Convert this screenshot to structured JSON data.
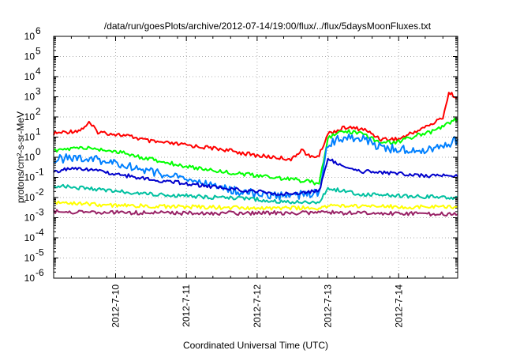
{
  "chart_data": {
    "type": "line",
    "title": "/data/run/goesPlots/archive/2012-07-14/19:00/flux/../flux/5daysMoonFluxes.txt",
    "xlabel": "Coordinated Universal Time (UTC)",
    "ylabel": "protons/cm²-s-sr-MeV",
    "y_scale": "log",
    "ylim": [
      1e-06,
      1000000.0
    ],
    "y_ticks": [
      {
        "exp": "-6"
      },
      {
        "exp": "-5"
      },
      {
        "exp": "-4"
      },
      {
        "exp": "-3"
      },
      {
        "exp": "-2"
      },
      {
        "exp": "-1"
      },
      {
        "exp": "0"
      },
      {
        "exp": "1"
      },
      {
        "exp": "2"
      },
      {
        "exp": "3"
      },
      {
        "exp": "4"
      },
      {
        "exp": "5"
      },
      {
        "exp": "6"
      }
    ],
    "xlim": [
      "2012-07-09T03:00",
      "2012-07-14T20:00"
    ],
    "x_ticks": [
      "2012-7-10",
      "2012-7-11",
      "2012-7-12",
      "2012-7-13",
      "2012-7-14"
    ],
    "grid": true,
    "series": [
      {
        "color": "#ff0000",
        "points": [
          [
            "2012-07-09T03:00",
            15
          ],
          [
            "2012-07-09T12:00",
            22
          ],
          [
            "2012-07-09T15:00",
            50
          ],
          [
            "2012-07-09T18:00",
            18
          ],
          [
            "2012-07-10T00:00",
            14
          ],
          [
            "2012-07-10T06:00",
            10
          ],
          [
            "2012-07-10T12:00",
            6
          ],
          [
            "2012-07-11T00:00",
            4
          ],
          [
            "2012-07-11T12:00",
            2.5
          ],
          [
            "2012-07-12T00:00",
            1.2
          ],
          [
            "2012-07-12T06:00",
            1.0
          ],
          [
            "2012-07-12T12:00",
            0.8
          ],
          [
            "2012-07-12T15:00",
            2.5
          ],
          [
            "2012-07-12T18:00",
            1.0
          ],
          [
            "2012-07-12T21:00",
            1.2
          ],
          [
            "2012-07-13T00:00",
            15
          ],
          [
            "2012-07-13T06:00",
            30
          ],
          [
            "2012-07-13T12:00",
            25
          ],
          [
            "2012-07-13T18:00",
            8
          ],
          [
            "2012-07-14T00:00",
            8
          ],
          [
            "2012-07-14T06:00",
            20
          ],
          [
            "2012-07-14T12:00",
            50
          ],
          [
            "2012-07-14T15:00",
            100
          ],
          [
            "2012-07-14T17:00",
            1500
          ],
          [
            "2012-07-14T20:00",
            1000
          ]
        ]
      },
      {
        "color": "#00ff00",
        "points": [
          [
            "2012-07-09T03:00",
            2
          ],
          [
            "2012-07-09T12:00",
            3
          ],
          [
            "2012-07-09T18:00",
            2.5
          ],
          [
            "2012-07-10T00:00",
            2
          ],
          [
            "2012-07-10T06:00",
            1.2
          ],
          [
            "2012-07-10T12:00",
            0.8
          ],
          [
            "2012-07-11T00:00",
            0.35
          ],
          [
            "2012-07-11T12:00",
            0.2
          ],
          [
            "2012-07-12T00:00",
            0.12
          ],
          [
            "2012-07-12T06:00",
            0.1
          ],
          [
            "2012-07-12T12:00",
            0.08
          ],
          [
            "2012-07-12T18:00",
            0.06
          ],
          [
            "2012-07-12T21:00",
            0.05
          ],
          [
            "2012-07-13T00:00",
            10
          ],
          [
            "2012-07-13T06:00",
            20
          ],
          [
            "2012-07-13T12:00",
            15
          ],
          [
            "2012-07-13T18:00",
            5
          ],
          [
            "2012-07-14T00:00",
            6
          ],
          [
            "2012-07-14T06:00",
            12
          ],
          [
            "2012-07-14T12:00",
            20
          ],
          [
            "2012-07-14T18:00",
            60
          ],
          [
            "2012-07-14T20:00",
            80
          ]
        ]
      },
      {
        "color": "#0080ff",
        "points": [
          [
            "2012-07-09T03:00",
            0.8
          ],
          [
            "2012-07-09T12:00",
            1
          ],
          [
            "2012-07-10T00:00",
            0.5
          ],
          [
            "2012-07-10T12:00",
            0.2
          ],
          [
            "2012-07-11T00:00",
            0.08
          ],
          [
            "2012-07-11T06:00",
            0.05
          ],
          [
            "2012-07-11T12:00",
            0.03
          ],
          [
            "2012-07-11T18:00",
            0.02
          ],
          [
            "2012-07-12T00:00",
            0.015
          ],
          [
            "2012-07-12T06:00",
            0.012
          ],
          [
            "2012-07-12T12:00",
            0.012
          ],
          [
            "2012-07-12T18:00",
            0.015
          ],
          [
            "2012-07-12T21:00",
            0.02
          ],
          [
            "2012-07-13T00:00",
            5
          ],
          [
            "2012-07-13T06:00",
            10
          ],
          [
            "2012-07-13T12:00",
            8
          ],
          [
            "2012-07-13T18:00",
            3
          ],
          [
            "2012-07-14T00:00",
            2.5
          ],
          [
            "2012-07-14T06:00",
            2
          ],
          [
            "2012-07-14T12:00",
            3
          ],
          [
            "2012-07-14T18:00",
            5
          ],
          [
            "2012-07-14T20:00",
            8
          ]
        ]
      },
      {
        "color": "#0000cc",
        "points": [
          [
            "2012-07-09T03:00",
            0.2
          ],
          [
            "2012-07-09T12:00",
            0.3
          ],
          [
            "2012-07-10T00:00",
            0.15
          ],
          [
            "2012-07-10T12:00",
            0.08
          ],
          [
            "2012-07-11T00:00",
            0.05
          ],
          [
            "2012-07-11T12:00",
            0.03
          ],
          [
            "2012-07-12T00:00",
            0.02
          ],
          [
            "2012-07-12T06:00",
            0.015
          ],
          [
            "2012-07-12T12:00",
            0.015
          ],
          [
            "2012-07-12T18:00",
            0.02
          ],
          [
            "2012-07-12T21:00",
            0.02
          ],
          [
            "2012-07-13T00:00",
            0.8
          ],
          [
            "2012-07-13T03:00",
            0.5
          ],
          [
            "2012-07-13T12:00",
            0.2
          ],
          [
            "2012-07-14T00:00",
            0.15
          ],
          [
            "2012-07-14T12:00",
            0.12
          ],
          [
            "2012-07-14T20:00",
            0.11
          ]
        ]
      },
      {
        "color": "#00c0a0",
        "points": [
          [
            "2012-07-09T03:00",
            0.04
          ],
          [
            "2012-07-09T12:00",
            0.03
          ],
          [
            "2012-07-10T00:00",
            0.02
          ],
          [
            "2012-07-11T00:00",
            0.012
          ],
          [
            "2012-07-12T00:00",
            0.008
          ],
          [
            "2012-07-12T12:00",
            0.006
          ],
          [
            "2012-07-12T21:00",
            0.006
          ],
          [
            "2012-07-13T00:00",
            0.03
          ],
          [
            "2012-07-13T06:00",
            0.02
          ],
          [
            "2012-07-13T12:00",
            0.014
          ],
          [
            "2012-07-14T00:00",
            0.012
          ],
          [
            "2012-07-14T20:00",
            0.01
          ]
        ]
      },
      {
        "color": "#ffff00",
        "points": [
          [
            "2012-07-09T03:00",
            0.006
          ],
          [
            "2012-07-09T12:00",
            0.005
          ],
          [
            "2012-07-10T00:00",
            0.004
          ],
          [
            "2012-07-11T00:00",
            0.0035
          ],
          [
            "2012-07-12T00:00",
            0.003
          ],
          [
            "2012-07-12T21:00",
            0.003
          ],
          [
            "2012-07-13T00:00",
            0.004
          ],
          [
            "2012-07-14T00:00",
            0.0035
          ],
          [
            "2012-07-14T20:00",
            0.0035
          ]
        ]
      },
      {
        "color": "#992266",
        "points": [
          [
            "2012-07-09T03:00",
            0.002
          ],
          [
            "2012-07-10T00:00",
            0.0018
          ],
          [
            "2012-07-11T00:00",
            0.0017
          ],
          [
            "2012-07-12T00:00",
            0.0017
          ],
          [
            "2012-07-13T00:00",
            0.0018
          ],
          [
            "2012-07-14T00:00",
            0.0016
          ],
          [
            "2012-07-14T20:00",
            0.0015
          ]
        ]
      }
    ]
  }
}
